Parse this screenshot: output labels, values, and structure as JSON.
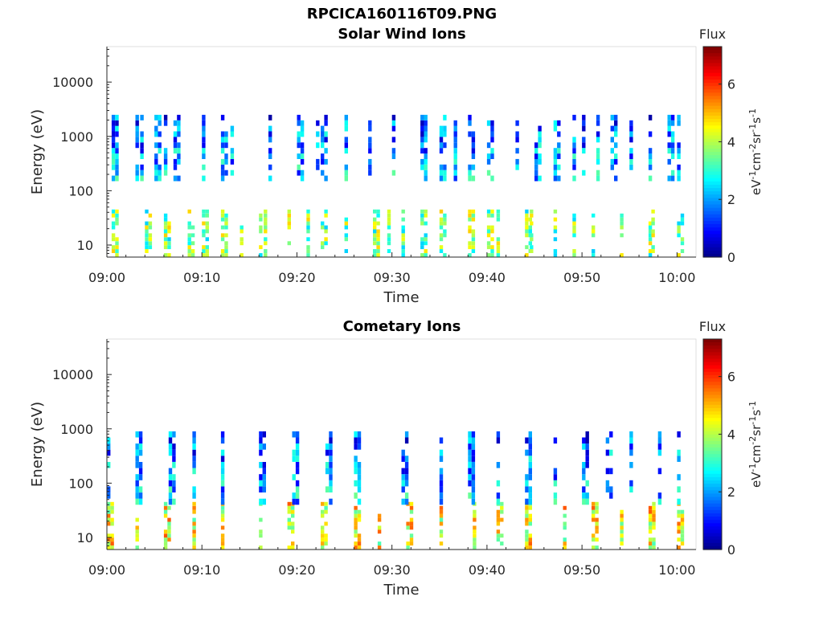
{
  "figure_title": "RPCICA160116T09.PNG",
  "chart_data": [
    {
      "type": "heatmap",
      "title": "Solar Wind Ions",
      "xlabel": "Time",
      "ylabel": "Energy (eV)",
      "x_ticks": [
        "09:00",
        "09:10",
        "09:20",
        "09:30",
        "09:40",
        "09:50",
        "10:00"
      ],
      "x_range_minutes": [
        0,
        62
      ],
      "y_ticks": [
        "10",
        "100",
        "1000",
        "10000"
      ],
      "y_scale": "log",
      "y_range": [
        6,
        45000
      ],
      "colorbar": {
        "title": "Flux",
        "label": "eV-1cm-2sr-1s-1",
        "ticks": [
          "0",
          "2",
          "4",
          "6"
        ],
        "range": [
          0,
          7.3
        ],
        "colormap": "jet"
      },
      "bands": [
        {
          "name": "low-energy band",
          "emin": 6,
          "emax": 45,
          "times": [
            0.5,
            4,
            6,
            8.5,
            10,
            12,
            14,
            16,
            16.5,
            19,
            21,
            22.5,
            25,
            28,
            29.5,
            31,
            33,
            35,
            38,
            40,
            41,
            44,
            44.5,
            47,
            49,
            51,
            54,
            57,
            57.3,
            60
          ]
        },
        {
          "name": "mid-energy band",
          "emin": 150,
          "emax": 2500,
          "times": [
            0.5,
            3,
            3.5,
            5,
            6,
            7,
            10,
            12,
            13,
            17,
            20,
            22,
            22.5,
            25,
            27.5,
            30,
            33,
            35,
            36.5,
            38,
            40,
            43,
            45,
            47,
            49,
            50,
            51.5,
            53,
            55,
            57,
            59,
            60
          ]
        }
      ]
    },
    {
      "type": "heatmap",
      "title": "Cometary Ions",
      "xlabel": "Time",
      "ylabel": "Energy (eV)",
      "x_ticks": [
        "09:00",
        "09:10",
        "09:20",
        "09:30",
        "09:40",
        "09:50",
        "10:00"
      ],
      "x_range_minutes": [
        0,
        62
      ],
      "y_ticks": [
        "10",
        "100",
        "1000",
        "10000"
      ],
      "y_scale": "log",
      "y_range": [
        6,
        45000
      ],
      "colorbar": {
        "title": "Flux",
        "label": "eV-1cm-2sr-1s-1",
        "ticks": [
          "0",
          "2",
          "4",
          "6"
        ],
        "range": [
          0,
          7.3
        ],
        "colormap": "jet"
      },
      "bands": [
        {
          "name": "low-energy band",
          "emin": 6,
          "emax": 45,
          "times": [
            0,
            3,
            6,
            9,
            12,
            16,
            19,
            22.5,
            26,
            28.5,
            31.5,
            35,
            38.5,
            41,
            44,
            48,
            51,
            54,
            57,
            60
          ]
        },
        {
          "name": "mid-energy band",
          "emin": 40,
          "emax": 900,
          "times": [
            0,
            3,
            6.5,
            9,
            12,
            16,
            19.5,
            23,
            26,
            31,
            35,
            38,
            41,
            44,
            47,
            50,
            52.5,
            55,
            58,
            60
          ]
        }
      ]
    }
  ]
}
